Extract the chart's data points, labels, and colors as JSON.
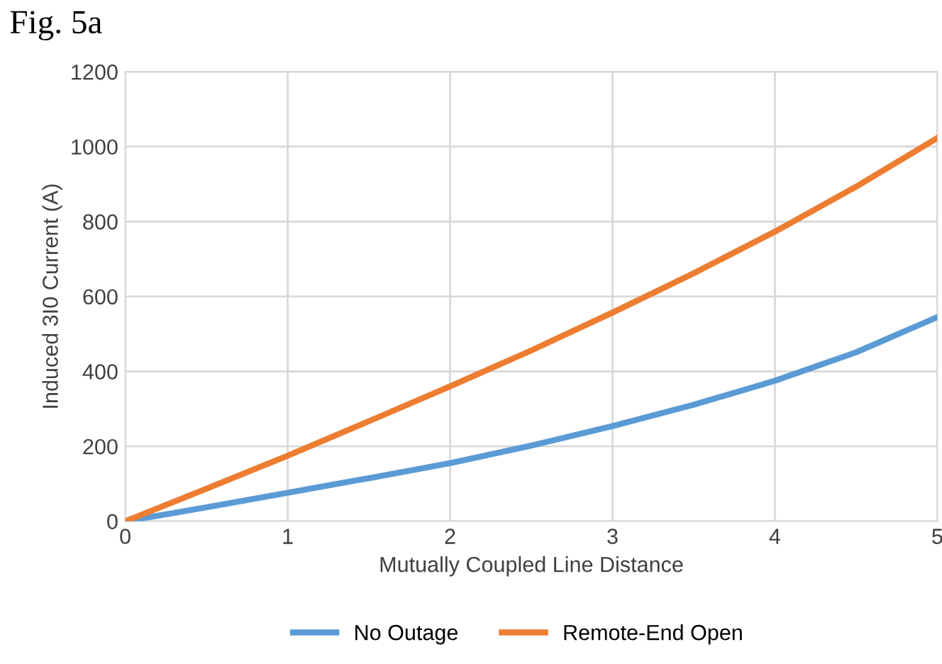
{
  "chart_data": {
    "type": "line",
    "title": "Fig. 5a",
    "xlabel": "Mutually Coupled Line Distance",
    "ylabel": "Induced 3I0 Current (A)",
    "x": [
      0,
      0.5,
      1,
      1.5,
      2,
      2.5,
      3,
      3.5,
      4,
      4.5,
      5
    ],
    "series": [
      {
        "name": "No Outage",
        "color": "#5b9bd5",
        "values": [
          0,
          37,
          76,
          115,
          155,
          202,
          254,
          311,
          375,
          451,
          545
        ]
      },
      {
        "name": "Remote-End Open",
        "color": "#ed7d31",
        "values": [
          0,
          87,
          175,
          267,
          360,
          456,
          557,
          662,
          773,
          893,
          1023
        ]
      }
    ],
    "xlim": [
      0,
      5
    ],
    "xticks": [
      0,
      1,
      2,
      3,
      4,
      5
    ],
    "ylim": [
      0,
      1200
    ],
    "yticks": [
      0,
      200,
      400,
      600,
      800,
      1000,
      1200
    ],
    "grid": true,
    "legend": "bottom",
    "marker": "none",
    "line_style": "solid"
  }
}
